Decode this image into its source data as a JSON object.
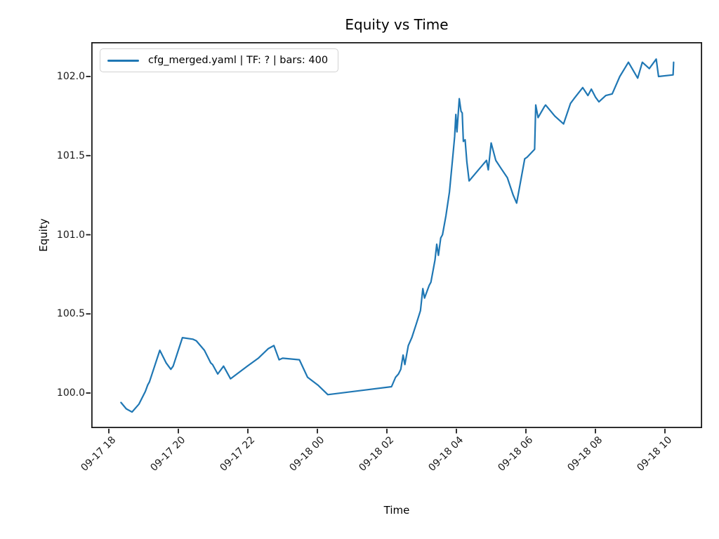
{
  "title": "Equity vs Time",
  "xlabel": "Time",
  "ylabel": "Equity",
  "legend": {
    "entries": [
      {
        "label": "cfg_merged.yaml | TF: ? | bars: 400",
        "color": "#1f77b4"
      }
    ],
    "position": "upper left"
  },
  "colors": {
    "line": "#1f77b4",
    "spine": "#1a1a1a",
    "text": "#000000",
    "legend_border": "#d2d2d2",
    "background": "#ffffff"
  },
  "chart_data": {
    "type": "line",
    "title": "Equity vs Time",
    "xlabel": "Time",
    "ylabel": "Equity",
    "grid": false,
    "legend_position": "upper left",
    "x_ticks": [
      "09-17 18",
      "09-17 20",
      "09-17 22",
      "09-18 00",
      "09-18 02",
      "09-18 04",
      "09-18 06",
      "09-18 08",
      "09-18 10"
    ],
    "y_ticks": [
      102.0,
      101.5,
      101.0,
      100.5,
      100.0
    ],
    "ylim": [
      99.78,
      102.22
    ],
    "xlim": [
      "09-17 17:30",
      "09-18 11:04"
    ],
    "series": [
      {
        "name": "cfg_merged.yaml | TF: ? | bars: 400",
        "color": "#1f77b4",
        "points": [
          [
            "09-17 18:21",
            99.94
          ],
          [
            "09-17 18:30",
            99.9
          ],
          [
            "09-17 18:40",
            99.88
          ],
          [
            "09-17 18:52",
            99.93
          ],
          [
            "09-17 19:03",
            100.01
          ],
          [
            "09-17 19:07",
            100.05
          ],
          [
            "09-17 19:10",
            100.07
          ],
          [
            "09-17 19:19",
            100.17
          ],
          [
            "09-17 19:28",
            100.27
          ],
          [
            "09-17 19:39",
            100.19
          ],
          [
            "09-17 19:47",
            100.15
          ],
          [
            "09-17 19:51",
            100.17
          ],
          [
            "09-17 19:59",
            100.26
          ],
          [
            "09-17 20:07",
            100.35
          ],
          [
            "09-17 20:25",
            100.34
          ],
          [
            "09-17 20:31",
            100.33
          ],
          [
            "09-17 20:45",
            100.27
          ],
          [
            "09-17 20:56",
            100.19
          ],
          [
            "09-17 20:59",
            100.18
          ],
          [
            "09-17 21:08",
            100.12
          ],
          [
            "09-17 21:18",
            100.17
          ],
          [
            "09-17 21:30",
            100.09
          ],
          [
            "09-17 21:59",
            100.17
          ],
          [
            "09-17 22:18",
            100.22
          ],
          [
            "09-17 22:35",
            100.28
          ],
          [
            "09-17 22:45",
            100.3
          ],
          [
            "09-17 22:54",
            100.21
          ],
          [
            "09-17 23:00",
            100.22
          ],
          [
            "09-17 23:29",
            100.21
          ],
          [
            "09-17 23:43",
            100.1
          ],
          [
            "09-18 00:01",
            100.05
          ],
          [
            "09-18 00:18",
            99.99
          ],
          [
            "09-18 02:08",
            100.04
          ],
          [
            "09-18 02:15",
            100.1
          ],
          [
            "09-18 02:20",
            100.12
          ],
          [
            "09-18 02:24",
            100.15
          ],
          [
            "09-18 02:28",
            100.24
          ],
          [
            "09-18 02:31",
            100.18
          ],
          [
            "09-18 02:37",
            100.3
          ],
          [
            "09-18 02:43",
            100.35
          ],
          [
            "09-18 02:51",
            100.44
          ],
          [
            "09-18 02:58",
            100.52
          ],
          [
            "09-18 03:02",
            100.66
          ],
          [
            "09-18 03:05",
            100.6
          ],
          [
            "09-18 03:13",
            100.68
          ],
          [
            "09-18 03:16",
            100.7
          ],
          [
            "09-18 03:23",
            100.84
          ],
          [
            "09-18 03:26",
            100.94
          ],
          [
            "09-18 03:29",
            100.87
          ],
          [
            "09-18 03:33",
            100.98
          ],
          [
            "09-18 03:36",
            101.0
          ],
          [
            "09-18 03:42",
            101.12
          ],
          [
            "09-18 03:48",
            101.27
          ],
          [
            "09-18 03:54",
            101.5
          ],
          [
            "09-18 03:57",
            101.62
          ],
          [
            "09-18 03:59",
            101.76
          ],
          [
            "09-18 04:01",
            101.65
          ],
          [
            "09-18 04:05",
            101.86
          ],
          [
            "09-18 04:08",
            101.78
          ],
          [
            "09-18 04:10",
            101.77
          ],
          [
            "09-18 04:12",
            101.59
          ],
          [
            "09-18 04:15",
            101.6
          ],
          [
            "09-18 04:18",
            101.46
          ],
          [
            "09-18 04:22",
            101.34
          ],
          [
            "09-18 04:45",
            101.44
          ],
          [
            "09-18 04:52",
            101.47
          ],
          [
            "09-18 04:55",
            101.41
          ],
          [
            "09-18 05:00",
            101.58
          ],
          [
            "09-18 05:08",
            101.47
          ],
          [
            "09-18 05:17",
            101.42
          ],
          [
            "09-18 05:28",
            101.36
          ],
          [
            "09-18 05:38",
            101.25
          ],
          [
            "09-18 05:44",
            101.2
          ],
          [
            "09-18 05:58",
            101.48
          ],
          [
            "09-18 06:02",
            101.49
          ],
          [
            "09-18 06:15",
            101.54
          ],
          [
            "09-18 06:17",
            101.82
          ],
          [
            "09-18 06:21",
            101.74
          ],
          [
            "09-18 06:32",
            101.81
          ],
          [
            "09-18 06:34",
            101.82
          ],
          [
            "09-18 06:50",
            101.75
          ],
          [
            "09-18 07:05",
            101.7
          ],
          [
            "09-18 07:17",
            101.83
          ],
          [
            "09-18 07:23",
            101.86
          ],
          [
            "09-18 07:38",
            101.93
          ],
          [
            "09-18 07:47",
            101.88
          ],
          [
            "09-18 07:53",
            101.92
          ],
          [
            "09-18 08:00",
            101.87
          ],
          [
            "09-18 08:06",
            101.84
          ],
          [
            "09-18 08:18",
            101.88
          ],
          [
            "09-18 08:29",
            101.89
          ],
          [
            "09-18 08:42",
            102.0
          ],
          [
            "09-18 08:57",
            102.09
          ],
          [
            "09-18 09:13",
            101.99
          ],
          [
            "09-18 09:21",
            102.09
          ],
          [
            "09-18 09:33",
            102.05
          ],
          [
            "09-18 09:45",
            102.11
          ],
          [
            "09-18 09:49",
            102.0
          ],
          [
            "09-18 10:14",
            102.01
          ],
          [
            "09-18 10:15",
            102.09
          ]
        ]
      }
    ]
  }
}
